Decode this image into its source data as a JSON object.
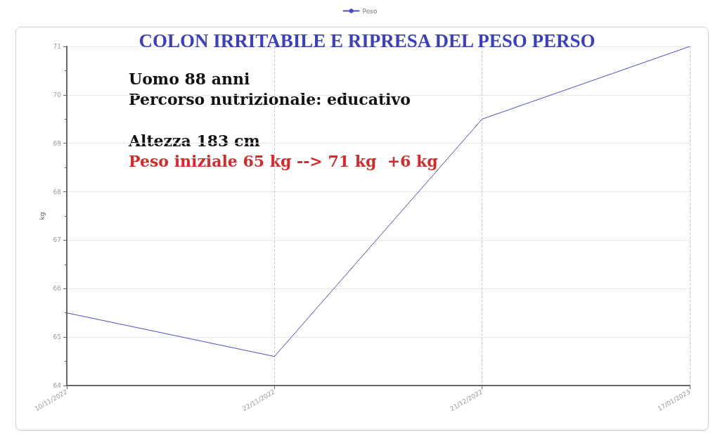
{
  "chart_data": {
    "type": "line",
    "title": "COLON IRRITABILE E RIPRESA DEL PESO PERSO",
    "ylabel": "kg",
    "annotations": [
      "Uomo 88 anni",
      "Percorso nutrizionale: educativo",
      "Altezza 183 cm",
      "Peso iniziale 65 kg --> 71 kg  +6 kg"
    ],
    "categories": [
      "10/11/2022",
      "22/11/2022",
      "21/12/2022",
      "17/01/2023"
    ],
    "series": [
      {
        "name": "Peso",
        "color": "#4b4bc8",
        "values": [
          65.5,
          64.6,
          69.5,
          71
        ]
      }
    ],
    "ylim": [
      64,
      71
    ],
    "yticks": [
      64,
      {
        "value": 64.5,
        "label": null
      },
      65,
      {
        "value": 65.5,
        "label": null
      },
      66,
      {
        "value": 66.5,
        "label": null
      },
      67,
      {
        "value": 67.5,
        "label": null
      },
      68,
      {
        "value": 68.5,
        "label": null
      },
      69,
      {
        "value": 69.5,
        "label": null
      },
      70,
      {
        "value": 70.5,
        "label": null
      },
      71
    ],
    "grid": true,
    "legend": "top"
  }
}
